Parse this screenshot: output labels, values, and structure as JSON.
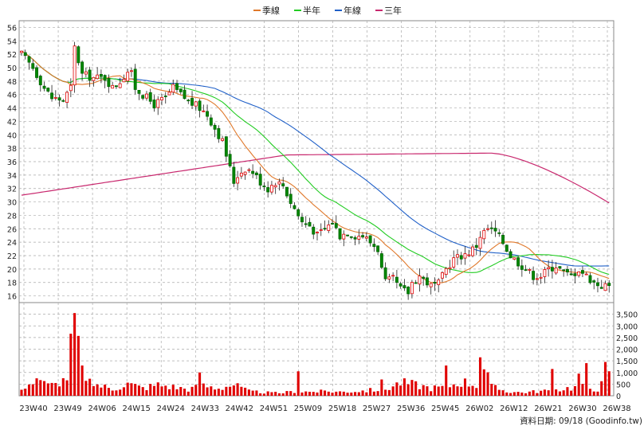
{
  "chart_data": {
    "type": "candlestick",
    "legend": {
      "placement": "top-center",
      "items": [
        {
          "label": "季線",
          "color": "#e0782a"
        },
        {
          "label": "半年",
          "color": "#22cc22"
        },
        {
          "label": "年線",
          "color": "#2060c8"
        },
        {
          "label": "三年",
          "color": "#c8286e"
        }
      ]
    },
    "price_axis": {
      "ylim": [
        15,
        57
      ],
      "ticks": [
        16,
        18,
        20,
        22,
        24,
        26,
        28,
        30,
        32,
        34,
        36,
        38,
        40,
        42,
        44,
        46,
        48,
        50,
        52,
        54,
        56
      ]
    },
    "volume_axis": {
      "ylim": [
        0,
        4000
      ],
      "ticks": [
        0,
        500,
        1000,
        1500,
        2000,
        2500,
        3000,
        3500
      ],
      "tick_labels": [
        "0",
        "500",
        "1,000",
        "1,500",
        "2,000",
        "2,500",
        "3,000",
        "3,500"
      ]
    },
    "x_labels": [
      "23W40",
      "23W49",
      "24W06",
      "24W15",
      "24W24",
      "24W33",
      "24W42",
      "24W51",
      "25W09",
      "25W18",
      "25W27",
      "25W36",
      "25W45",
      "26W02",
      "26W12",
      "26W21",
      "26W30",
      "26W38"
    ],
    "footer_text": "資料日期: 09/18  (Goodinfo.tw)",
    "grid": true,
    "n_periods": 156,
    "price_key_points": [
      [
        0,
        52
      ],
      [
        3,
        50
      ],
      [
        6,
        47
      ],
      [
        8,
        45.5
      ],
      [
        11,
        45.2
      ],
      [
        13,
        47
      ],
      [
        14,
        53
      ],
      [
        16,
        49
      ],
      [
        19,
        48.5
      ],
      [
        22,
        48.5
      ],
      [
        24,
        47
      ],
      [
        26,
        48
      ],
      [
        28,
        49.5
      ],
      [
        29,
        49
      ],
      [
        30,
        47
      ],
      [
        33,
        45.5
      ],
      [
        35,
        44.5
      ],
      [
        38,
        45.5
      ],
      [
        40,
        47
      ],
      [
        42,
        46
      ],
      [
        44,
        45
      ],
      [
        47,
        44
      ],
      [
        49,
        43
      ],
      [
        51,
        41
      ],
      [
        53,
        39
      ],
      [
        54,
        37
      ],
      [
        55,
        35
      ],
      [
        56,
        33
      ],
      [
        57,
        34
      ],
      [
        59,
        35
      ],
      [
        61,
        34.5
      ],
      [
        63,
        33
      ],
      [
        65,
        32
      ],
      [
        67,
        33
      ],
      [
        69,
        32.5
      ],
      [
        71,
        30
      ],
      [
        72,
        29
      ],
      [
        74,
        27
      ],
      [
        76,
        26.5
      ],
      [
        78,
        25
      ],
      [
        80,
        26
      ],
      [
        82,
        27
      ],
      [
        84,
        25
      ],
      [
        86,
        25.5
      ],
      [
        88,
        25
      ],
      [
        90,
        25
      ],
      [
        92,
        24
      ],
      [
        94,
        23
      ],
      [
        95,
        20
      ],
      [
        96,
        18
      ],
      [
        98,
        18.5
      ],
      [
        100,
        17
      ],
      [
        102,
        16.5
      ],
      [
        103,
        18
      ],
      [
        105,
        19
      ],
      [
        107,
        18
      ],
      [
        108,
        17.5
      ],
      [
        110,
        17.8
      ],
      [
        112,
        20
      ],
      [
        114,
        21.5
      ],
      [
        116,
        22
      ],
      [
        118,
        22.5
      ],
      [
        120,
        23.5
      ],
      [
        121,
        25
      ],
      [
        123,
        26
      ],
      [
        125,
        25.5
      ],
      [
        127,
        24
      ],
      [
        129,
        22
      ],
      [
        131,
        21
      ],
      [
        133,
        20
      ],
      [
        135,
        19
      ],
      [
        137,
        19
      ],
      [
        139,
        20
      ],
      [
        141,
        20.5
      ],
      [
        143,
        19.5
      ],
      [
        145,
        19
      ],
      [
        147,
        20
      ],
      [
        149,
        19
      ],
      [
        151,
        18
      ],
      [
        153,
        17.5
      ],
      [
        155,
        17.5
      ]
    ],
    "volume_key_points": [
      [
        0,
        400
      ],
      [
        4,
        650
      ],
      [
        8,
        450
      ],
      [
        12,
        650
      ],
      [
        14,
        3500
      ],
      [
        16,
        600
      ],
      [
        20,
        500
      ],
      [
        24,
        300
      ],
      [
        28,
        550
      ],
      [
        32,
        350
      ],
      [
        36,
        500
      ],
      [
        40,
        400
      ],
      [
        44,
        300
      ],
      [
        48,
        450
      ],
      [
        52,
        350
      ],
      [
        56,
        500
      ],
      [
        60,
        200
      ],
      [
        64,
        150
      ],
      [
        68,
        120
      ],
      [
        72,
        200
      ],
      [
        76,
        180
      ],
      [
        80,
        200
      ],
      [
        84,
        180
      ],
      [
        88,
        200
      ],
      [
        92,
        250
      ],
      [
        96,
        300
      ],
      [
        100,
        600
      ],
      [
        104,
        500
      ],
      [
        108,
        350
      ],
      [
        112,
        400
      ],
      [
        116,
        650
      ],
      [
        120,
        500
      ],
      [
        121,
        1650
      ],
      [
        124,
        400
      ],
      [
        128,
        200
      ],
      [
        132,
        150
      ],
      [
        136,
        200
      ],
      [
        140,
        250
      ],
      [
        144,
        350
      ],
      [
        148,
        400
      ],
      [
        152,
        300
      ],
      [
        155,
        900
      ]
    ],
    "volume_spikes": [
      [
        8,
        550
      ],
      [
        14,
        3550
      ],
      [
        16,
        1300
      ],
      [
        47,
        1000
      ],
      [
        73,
        1050
      ],
      [
        95,
        700
      ],
      [
        112,
        1300
      ],
      [
        121,
        1650
      ],
      [
        140,
        1150
      ],
      [
        147,
        950
      ],
      [
        149,
        1400
      ],
      [
        154,
        1450
      ],
      [
        156,
        1550
      ]
    ]
  }
}
